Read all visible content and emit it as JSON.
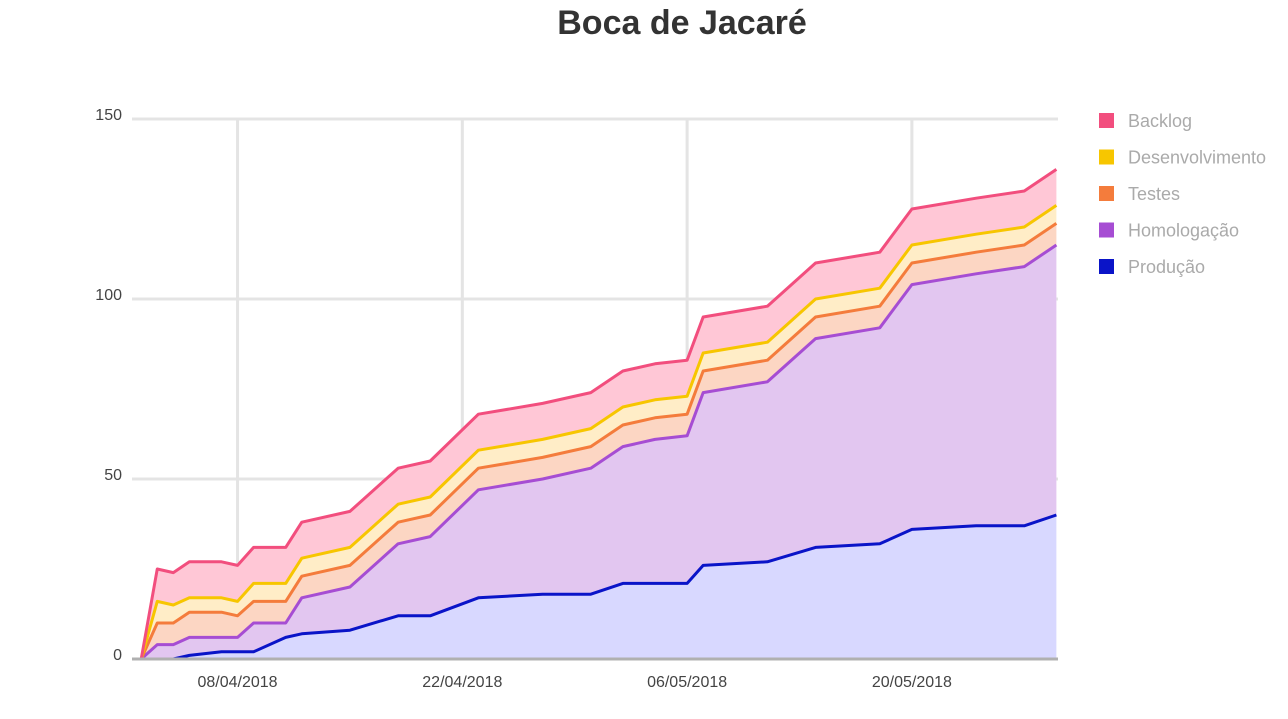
{
  "chart_data": {
    "type": "area",
    "stacked": true,
    "title": "Boca de Jacaré",
    "xlabel": "",
    "ylabel": "",
    "ylim": [
      0,
      150
    ],
    "yticks": [
      0,
      50,
      100,
      150
    ],
    "xticks": [
      "08/04/2018",
      "22/04/2018",
      "06/05/2018",
      "20/05/2018"
    ],
    "x": [
      "02/04/2018",
      "03/04/2018",
      "04/04/2018",
      "05/04/2018",
      "07/04/2018",
      "08/04/2018",
      "09/04/2018",
      "11/04/2018",
      "12/04/2018",
      "15/04/2018",
      "18/04/2018",
      "20/04/2018",
      "23/04/2018",
      "27/04/2018",
      "30/04/2018",
      "02/05/2018",
      "04/05/2018",
      "06/05/2018",
      "07/05/2018",
      "11/05/2018",
      "14/05/2018",
      "18/05/2018",
      "20/05/2018",
      "24/05/2018",
      "27/05/2018",
      "29/05/2018"
    ],
    "grid": true,
    "legend_position": "right",
    "series": [
      {
        "name": "Produção",
        "color": "#0a14c8",
        "fill": "#d8d8ff",
        "values": [
          0,
          0,
          0,
          1,
          2,
          2,
          2,
          6,
          7,
          8,
          12,
          12,
          17,
          18,
          18,
          21,
          21,
          21,
          26,
          27,
          31,
          32,
          36,
          37,
          37,
          40
        ]
      },
      {
        "name": "Homologação",
        "color": "#a64dd3",
        "fill": "#e2c6f0",
        "values": [
          0,
          4,
          4,
          5,
          4,
          4,
          8,
          4,
          10,
          12,
          20,
          22,
          30,
          32,
          35,
          38,
          40,
          41,
          48,
          50,
          58,
          60,
          68,
          70,
          72,
          75
        ]
      },
      {
        "name": "Testes",
        "color": "#f47c3c",
        "fill": "#fcd6c3",
        "values": [
          0,
          6,
          6,
          7,
          7,
          6,
          6,
          6,
          6,
          6,
          6,
          6,
          6,
          6,
          6,
          6,
          6,
          6,
          6,
          6,
          6,
          6,
          6,
          6,
          6,
          6
        ]
      },
      {
        "name": "Desenvolvimento",
        "color": "#f7c600",
        "fill": "#ffedc7",
        "values": [
          0,
          6,
          5,
          4,
          4,
          4,
          5,
          5,
          5,
          5,
          5,
          5,
          5,
          5,
          5,
          5,
          5,
          5,
          5,
          5,
          5,
          5,
          5,
          5,
          5,
          5
        ]
      },
      {
        "name": "Backlog",
        "color": "#f24e7e",
        "fill": "#ffc7d6",
        "values": [
          0,
          9,
          9,
          10,
          10,
          10,
          10,
          10,
          10,
          10,
          10,
          10,
          10,
          10,
          10,
          10,
          10,
          10,
          10,
          10,
          10,
          10,
          10,
          10,
          10,
          10
        ]
      }
    ],
    "legend_order": [
      "Backlog",
      "Desenvolvimento",
      "Testes",
      "Homologação",
      "Produção"
    ]
  }
}
